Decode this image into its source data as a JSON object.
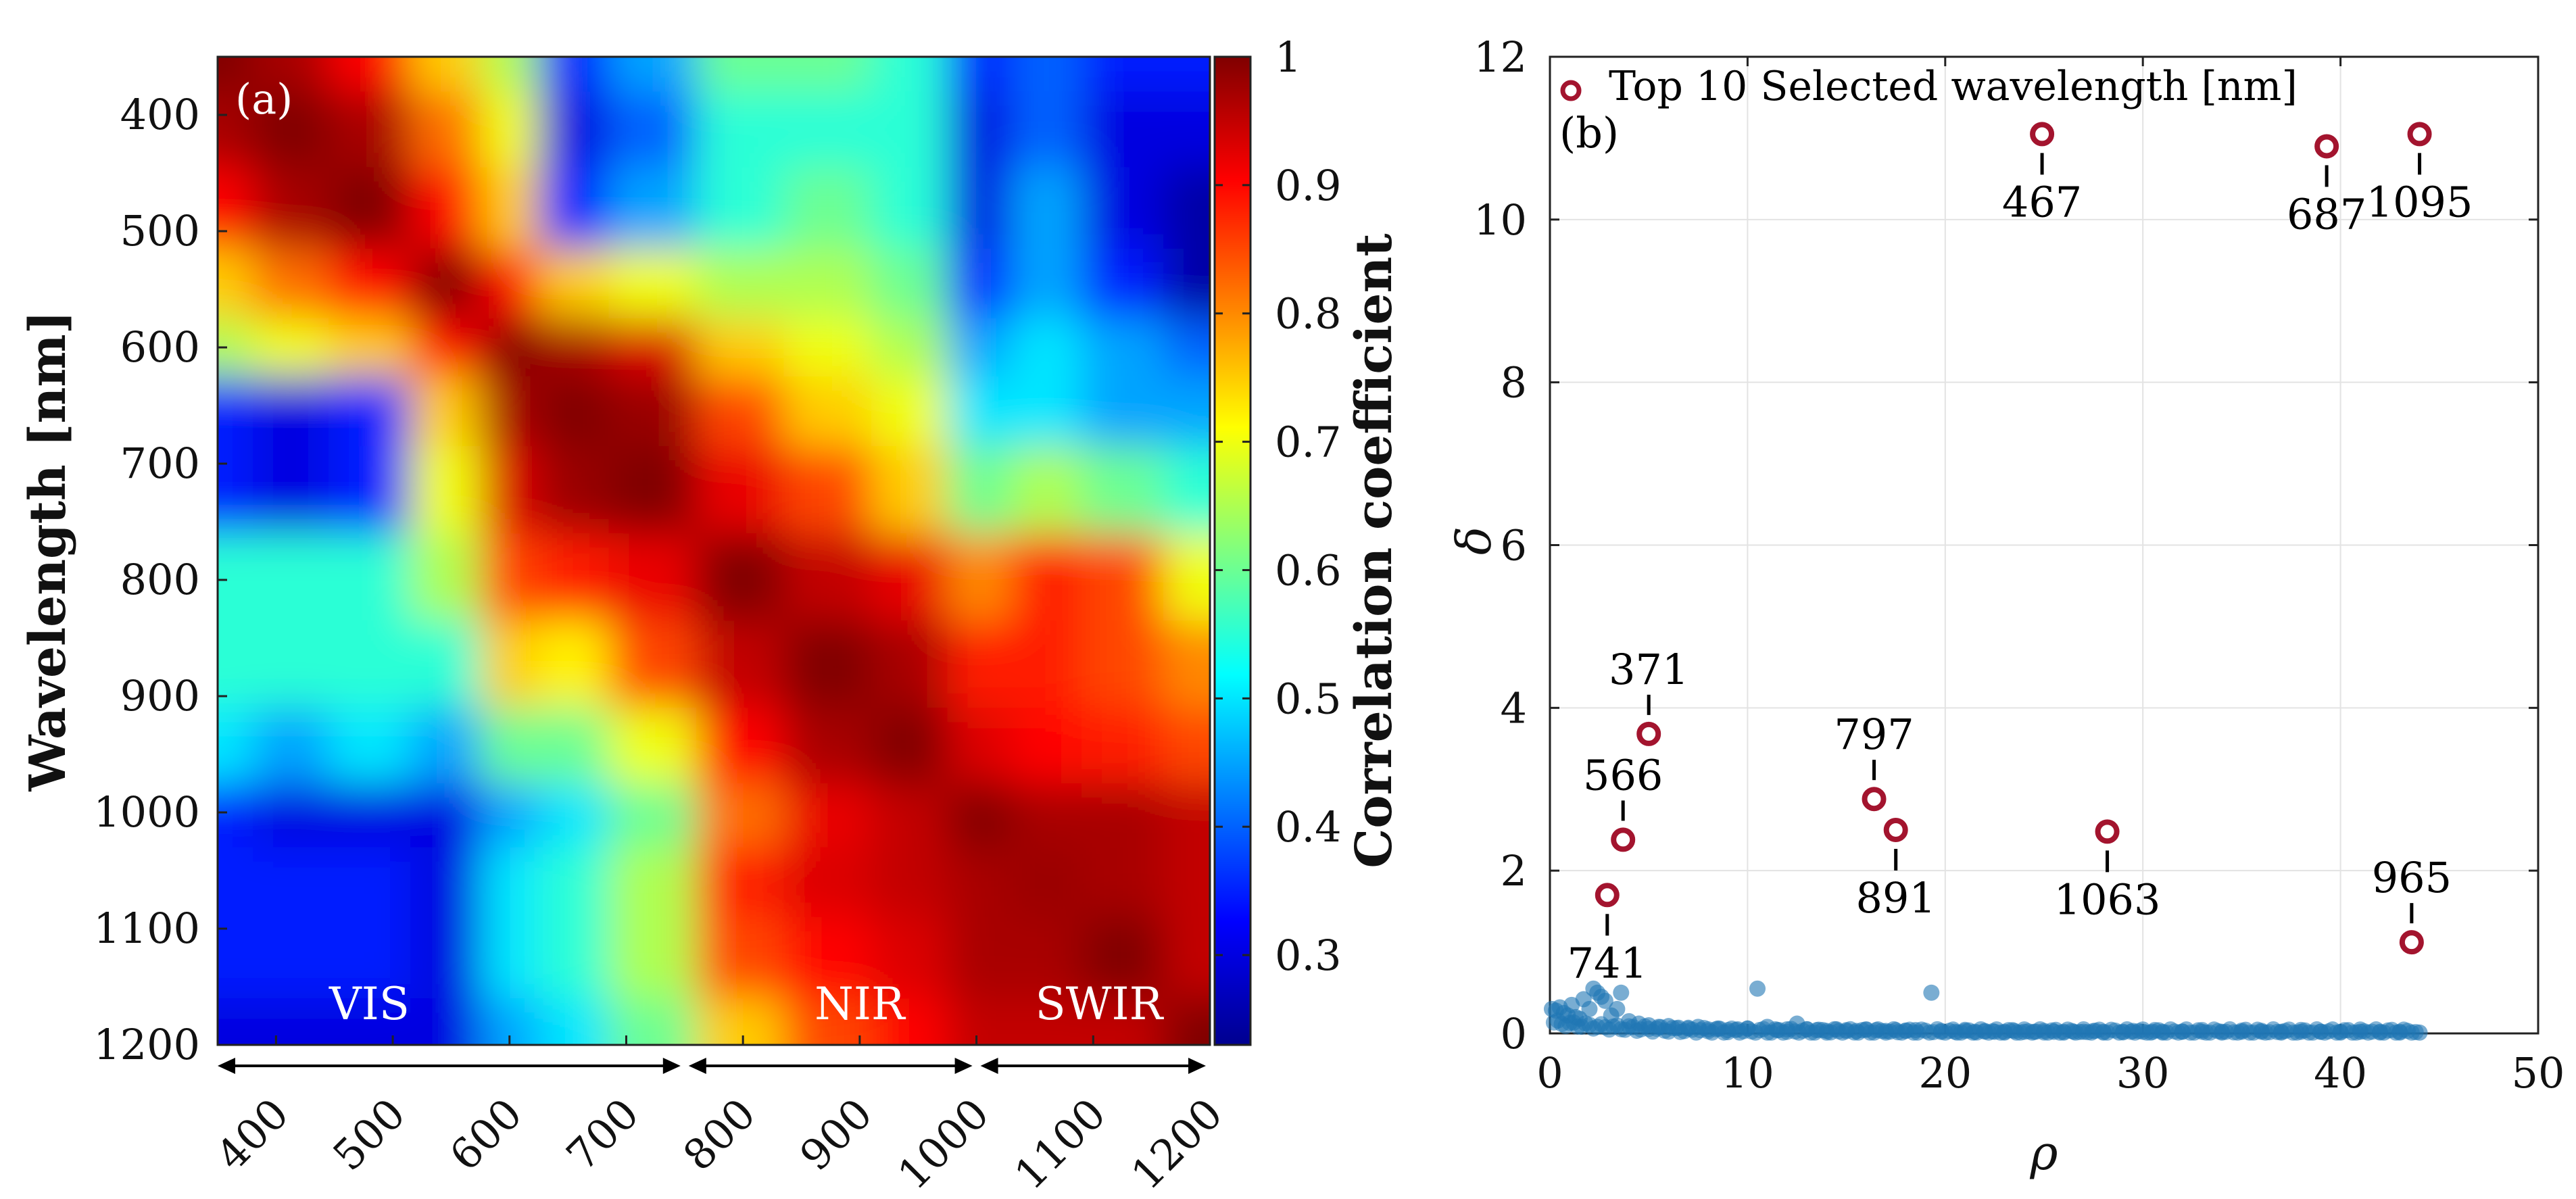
{
  "chart_data": [
    {
      "type": "heatmap",
      "panel_label": "(a)",
      "ylabel": "Wavelength [nm]",
      "x_range": [
        350,
        1200
      ],
      "y_range": [
        350,
        1200
      ],
      "x_ticks": [
        "400",
        "500",
        "600",
        "700",
        "800",
        "900",
        "1000",
        "1100",
        "1200"
      ],
      "y_ticks": [
        "400",
        "500",
        "600",
        "700",
        "800",
        "900",
        "1000",
        "1100",
        "1200"
      ],
      "colorbar": {
        "label": "Correlation coefficient",
        "range": [
          0.23,
          1.0
        ],
        "ticks": [
          "1",
          "0.9",
          "0.8",
          "0.7",
          "0.6",
          "0.5",
          "0.4",
          "0.3"
        ],
        "tick_values": [
          1,
          0.9,
          0.8,
          0.7,
          0.6,
          0.5,
          0.4,
          0.3
        ]
      },
      "regions": [
        {
          "name": "VIS",
          "from": 350,
          "to": 750
        },
        {
          "name": "NIR",
          "from": 750,
          "to": 1000
        },
        {
          "name": "SWIR",
          "from": 1000,
          "to": 1200
        }
      ],
      "grid_axis": [
        350,
        410,
        480,
        550,
        600,
        650,
        720,
        800,
        870,
        950,
        1000,
        1060,
        1120,
        1200
      ],
      "matrix": [
        [
          1.0,
          0.97,
          0.9,
          0.75,
          0.65,
          0.35,
          0.45,
          0.6,
          0.6,
          0.55,
          0.35,
          0.4,
          0.35,
          0.35
        ],
        [
          0.97,
          1.0,
          0.97,
          0.82,
          0.7,
          0.3,
          0.4,
          0.55,
          0.55,
          0.55,
          0.3,
          0.4,
          0.3,
          0.3
        ],
        [
          0.9,
          0.97,
          1.0,
          0.9,
          0.75,
          0.35,
          0.45,
          0.55,
          0.6,
          0.55,
          0.3,
          0.45,
          0.3,
          0.25
        ],
        [
          0.75,
          0.82,
          0.9,
          1.0,
          0.9,
          0.75,
          0.7,
          0.65,
          0.65,
          0.6,
          0.35,
          0.45,
          0.35,
          0.25
        ],
        [
          0.65,
          0.7,
          0.75,
          0.9,
          1.0,
          0.97,
          0.93,
          0.75,
          0.7,
          0.65,
          0.45,
          0.5,
          0.45,
          0.4
        ],
        [
          0.35,
          0.3,
          0.35,
          0.75,
          0.97,
          1.0,
          0.98,
          0.85,
          0.75,
          0.7,
          0.5,
          0.5,
          0.45,
          0.45
        ],
        [
          0.35,
          0.3,
          0.35,
          0.7,
          0.93,
          0.98,
          1.0,
          0.92,
          0.85,
          0.75,
          0.6,
          0.65,
          0.6,
          0.55
        ],
        [
          0.55,
          0.55,
          0.55,
          0.65,
          0.85,
          0.88,
          0.92,
          1.0,
          0.95,
          0.92,
          0.8,
          0.88,
          0.85,
          0.7
        ],
        [
          0.55,
          0.55,
          0.55,
          0.55,
          0.75,
          0.72,
          0.85,
          0.95,
          1.0,
          0.97,
          0.88,
          0.88,
          0.85,
          0.8
        ],
        [
          0.5,
          0.45,
          0.5,
          0.45,
          0.6,
          0.6,
          0.7,
          0.9,
          0.97,
          1.0,
          0.93,
          0.9,
          0.88,
          0.85
        ],
        [
          0.35,
          0.3,
          0.3,
          0.3,
          0.45,
          0.5,
          0.6,
          0.82,
          0.92,
          0.95,
          1.0,
          0.97,
          0.97,
          0.95
        ],
        [
          0.35,
          0.35,
          0.35,
          0.3,
          0.5,
          0.55,
          0.65,
          0.88,
          0.93,
          0.95,
          0.97,
          0.98,
          0.97,
          0.95
        ],
        [
          0.35,
          0.35,
          0.35,
          0.3,
          0.5,
          0.55,
          0.65,
          0.85,
          0.9,
          0.93,
          0.97,
          0.97,
          1.0,
          0.95
        ],
        [
          0.3,
          0.3,
          0.3,
          0.3,
          0.45,
          0.5,
          0.6,
          0.75,
          0.85,
          0.9,
          0.95,
          0.95,
          0.95,
          1.0
        ]
      ]
    },
    {
      "type": "scatter",
      "panel_label": "(b)",
      "xlabel": "ρ",
      "ylabel": "δ",
      "xlim": [
        0,
        50
      ],
      "ylim": [
        0,
        12
      ],
      "x_ticks": [
        "0",
        "10",
        "20",
        "30",
        "40",
        "50"
      ],
      "y_ticks": [
        "0",
        "2",
        "4",
        "6",
        "8",
        "10",
        "12"
      ],
      "grid": true,
      "legend": {
        "label": "Top 10 Selected wavelength [nm]",
        "position": "top-left"
      },
      "background_points": [
        [
          0.1,
          0.3
        ],
        [
          0.3,
          0.28
        ],
        [
          0.5,
          0.32
        ],
        [
          0.7,
          0.25
        ],
        [
          0.9,
          0.22
        ],
        [
          1.1,
          0.35
        ],
        [
          1.3,
          0.2
        ],
        [
          1.5,
          0.18
        ],
        [
          1.7,
          0.42
        ],
        [
          2.0,
          0.3
        ],
        [
          2.2,
          0.55
        ],
        [
          2.4,
          0.5
        ],
        [
          2.6,
          0.45
        ],
        [
          2.8,
          0.4
        ],
        [
          3.1,
          0.22
        ],
        [
          3.4,
          0.3
        ],
        [
          3.6,
          0.5
        ],
        [
          4.0,
          0.15
        ],
        [
          4.5,
          0.12
        ],
        [
          5.0,
          0.1
        ],
        [
          5.5,
          0.08
        ],
        [
          6.0,
          0.09
        ],
        [
          6.5,
          0.07
        ],
        [
          7.0,
          0.06
        ],
        [
          7.5,
          0.08
        ],
        [
          8.0,
          0.05
        ],
        [
          8.5,
          0.06
        ],
        [
          9.0,
          0.04
        ],
        [
          9.5,
          0.05
        ],
        [
          10.0,
          0.06
        ],
        [
          10.5,
          0.55
        ],
        [
          11.0,
          0.08
        ],
        [
          11.5,
          0.04
        ],
        [
          12.0,
          0.05
        ],
        [
          12.5,
          0.12
        ],
        [
          13.0,
          0.05
        ],
        [
          13.5,
          0.04
        ],
        [
          14.0,
          0.03
        ],
        [
          14.5,
          0.05
        ],
        [
          15.0,
          0.04
        ],
        [
          15.5,
          0.03
        ],
        [
          16.0,
          0.05
        ],
        [
          16.5,
          0.04
        ],
        [
          17.0,
          0.03
        ],
        [
          17.5,
          0.04
        ],
        [
          18.0,
          0.03
        ],
        [
          18.5,
          0.04
        ],
        [
          19.3,
          0.5
        ],
        [
          19.8,
          0.03
        ],
        [
          20.5,
          0.02
        ],
        [
          21.0,
          0.03
        ],
        [
          21.5,
          0.02
        ],
        [
          22.0,
          0.03
        ],
        [
          22.5,
          0.02
        ],
        [
          23.0,
          0.02
        ],
        [
          23.5,
          0.03
        ],
        [
          24.0,
          0.02
        ],
        [
          24.5,
          0.02
        ],
        [
          25.0,
          0.03
        ],
        [
          25.5,
          0.02
        ],
        [
          26.0,
          0.02
        ],
        [
          26.5,
          0.02
        ],
        [
          27.0,
          0.02
        ],
        [
          27.5,
          0.03
        ],
        [
          28.0,
          0.02
        ],
        [
          29.0,
          0.02
        ],
        [
          29.5,
          0.03
        ],
        [
          30.0,
          0.02
        ],
        [
          30.5,
          0.02
        ],
        [
          31.0,
          0.02
        ],
        [
          32.0,
          0.02
        ],
        [
          33.0,
          0.02
        ],
        [
          34.0,
          0.02
        ],
        [
          35.0,
          0.02
        ],
        [
          36.0,
          0.02
        ],
        [
          37.0,
          0.02
        ],
        [
          38.0,
          0.02
        ],
        [
          39.0,
          0.02
        ],
        [
          40.0,
          0.02
        ],
        [
          41.0,
          0.02
        ],
        [
          42.0,
          0.02
        ],
        [
          43.0,
          0.02
        ],
        [
          44.0,
          0.01
        ]
      ],
      "selected": [
        {
          "label": "467",
          "x": 24.9,
          "y": 11.05,
          "label_side": "below"
        },
        {
          "label": "687",
          "x": 39.3,
          "y": 10.9,
          "label_side": "below"
        },
        {
          "label": "1095",
          "x": 44.0,
          "y": 11.05,
          "label_side": "below"
        },
        {
          "label": "371",
          "x": 5.0,
          "y": 3.68,
          "label_side": "above"
        },
        {
          "label": "566",
          "x": 3.7,
          "y": 2.38,
          "label_side": "above"
        },
        {
          "label": "741",
          "x": 2.9,
          "y": 1.7,
          "label_side": "below"
        },
        {
          "label": "797",
          "x": 16.4,
          "y": 2.88,
          "label_side": "above"
        },
        {
          "label": "891",
          "x": 17.5,
          "y": 2.5,
          "label_side": "below"
        },
        {
          "label": "1063",
          "x": 28.2,
          "y": 2.48,
          "label_side": "below"
        },
        {
          "label": "965",
          "x": 43.6,
          "y": 1.12,
          "label_side": "above"
        }
      ]
    }
  ]
}
